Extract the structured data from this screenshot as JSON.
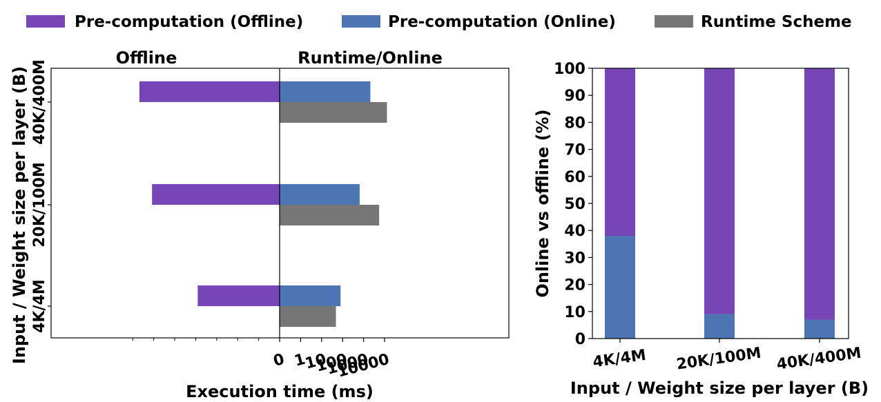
{
  "colors": {
    "offline": "#7745b5",
    "online": "#4d75b3",
    "runtime": "#767676",
    "axis": "#000000",
    "background": "#ffffff"
  },
  "legend": {
    "items": [
      {
        "label": "Pre-computation (Offline)",
        "color": "#7745b5"
      },
      {
        "label": "Pre-computation (Online)",
        "color": "#4d75b3"
      },
      {
        "label": "Runtime Scheme",
        "color": "#767676"
      }
    ],
    "placement": "top"
  },
  "chart_data": [
    {
      "type": "bar",
      "orientation": "horizontal",
      "section_titles": {
        "left": "Offline",
        "right": "Runtime/Online"
      },
      "categories": [
        "4K/4M",
        "20K/100M",
        "40K/400M"
      ],
      "xlabel": "Execution time (ms)",
      "ylabel": "Input / Weight size per layer (B)",
      "xscale": "symlog",
      "x_tick_labels": [
        "0",
        "1",
        "10",
        "100",
        "1000",
        "10000"
      ],
      "x_ticks": [
        0,
        1,
        10,
        100,
        1000,
        10000
      ],
      "grid": false,
      "series": [
        {
          "name": "Pre-computation (Offline)",
          "side": "left",
          "values": [
            800,
            120000,
            480000
          ]
        },
        {
          "name": "Pre-computation (Online)",
          "side": "right",
          "values": [
            80,
            650,
            2100
          ]
        },
        {
          "name": "Runtime Scheme",
          "side": "right",
          "values": [
            48,
            5500,
            13000
          ]
        }
      ]
    },
    {
      "type": "bar",
      "stacked": true,
      "categories": [
        "4K/4M",
        "20K/100M",
        "40K/400M"
      ],
      "xlabel": "Input / Weight size per layer (B)",
      "ylabel": "Online vs offline (%)",
      "ylim": [
        0,
        100
      ],
      "y_ticks": [
        0,
        10,
        20,
        30,
        40,
        50,
        60,
        70,
        80,
        90,
        100
      ],
      "grid": false,
      "series": [
        {
          "name": "Pre-computation (Online)",
          "values": [
            38,
            9,
            7
          ]
        },
        {
          "name": "Pre-computation (Offline)",
          "values": [
            62,
            91,
            93
          ]
        }
      ]
    }
  ]
}
